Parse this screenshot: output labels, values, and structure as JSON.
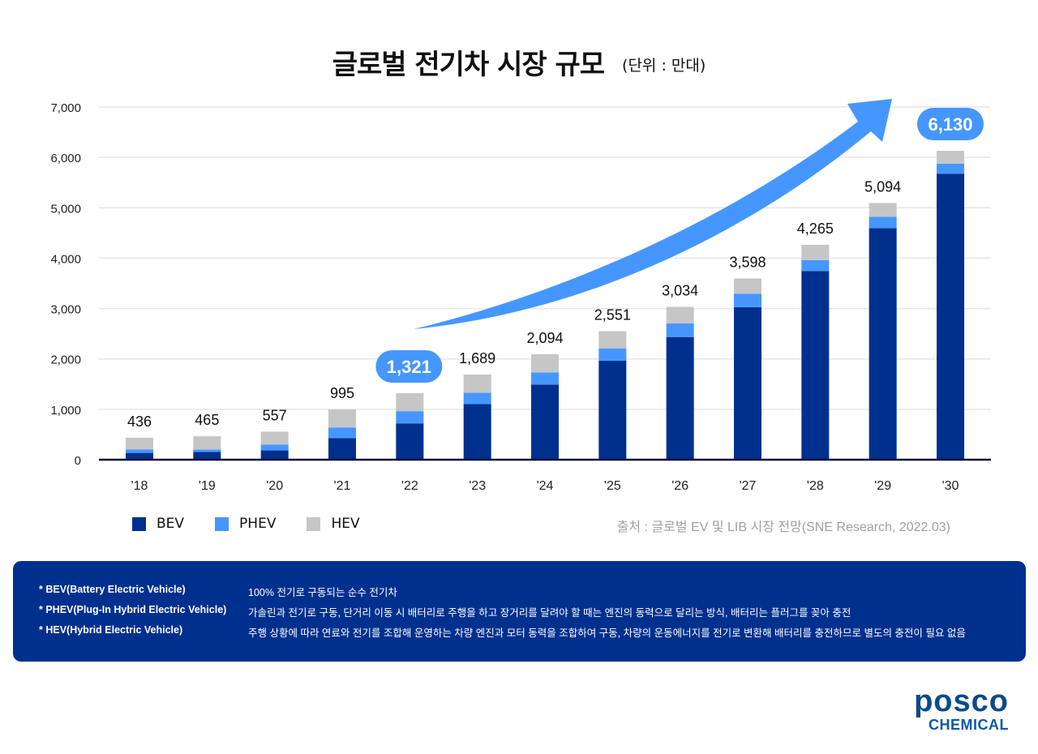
{
  "title": "글로벌 전기차 시장 규모",
  "unit": "(단위 : 만대)",
  "source": "출처 : 글로벌 EV 및 LIB 시장 전망(SNE Research, 2022.03)",
  "colors": {
    "BEV": "#00308e",
    "PHEV": "#4597ff",
    "HEV": "#c6c6c6",
    "highlight": "#4597ff",
    "notes_bg": "#00308e"
  },
  "chart_data": {
    "type": "bar",
    "stacked": true,
    "categories": [
      "'18",
      "'19",
      "'20",
      "'21",
      "'22",
      "'23",
      "'24",
      "'25",
      "'26",
      "'27",
      "'28",
      "'29",
      "'30"
    ],
    "series": [
      {
        "name": "BEV",
        "values": [
          135,
          156,
          184,
          430,
          721,
          1103,
          1490,
          1963,
          2435,
          3027,
          3742,
          4597,
          5677
        ]
      },
      {
        "name": "PHEV",
        "values": [
          70,
          48,
          118,
          210,
          242,
          226,
          242,
          247,
          269,
          269,
          221,
          226,
          200
        ]
      },
      {
        "name": "HEV",
        "values": [
          231,
          261,
          255,
          355,
          358,
          360,
          362,
          341,
          330,
          302,
          302,
          271,
          253
        ]
      }
    ],
    "totals": [
      436,
      465,
      557,
      995,
      1321,
      1689,
      2094,
      2551,
      3034,
      3598,
      4265,
      5094,
      6130
    ],
    "total_labels": [
      "436",
      "465",
      "557",
      "995",
      "1,321",
      "1,689",
      "2,094",
      "2,551",
      "3,034",
      "3,598",
      "4,265",
      "5,094",
      "6,130"
    ],
    "highlighted": [
      "'22",
      "'30"
    ],
    "ylim": [
      0,
      7000
    ],
    "yticks": [
      0,
      1000,
      2000,
      3000,
      4000,
      5000,
      6000,
      7000
    ],
    "ytick_labels": [
      "0",
      "1,000",
      "2,000",
      "3,000",
      "4,000",
      "5,000",
      "6,000",
      "7,000"
    ],
    "grid": true,
    "legend": "bottom-left",
    "annotation": "growth arrow from '22 to '30"
  },
  "notes": [
    {
      "term": "* BEV(Battery Electric Vehicle)",
      "desc": "100% 전기로 구동되는 순수 전기차"
    },
    {
      "term": "* PHEV(Plug-In Hybrid Electric Vehicle)",
      "desc": "가솔린과 전기로 구동, 단거리 이동 시 배터리로 주행을 하고 장거리를 달려야 할 때는 엔진의 동력으로 달리는 방식, 배터리는 플러그를 꽂아 충전"
    },
    {
      "term": "* HEV(Hybrid Electric Vehicle)",
      "desc": "주행 상황에 따라 연료와 전기를 조합해 운영하는 차량 엔진과 모터 동력을 조합하여 구동, 차량의 운동에너지를 전기로 변환해 배터리를 충전하므로 별도의 충전이 필요 없음"
    }
  ],
  "logo": {
    "line1": "posco",
    "line2": "CHEMICAL"
  }
}
